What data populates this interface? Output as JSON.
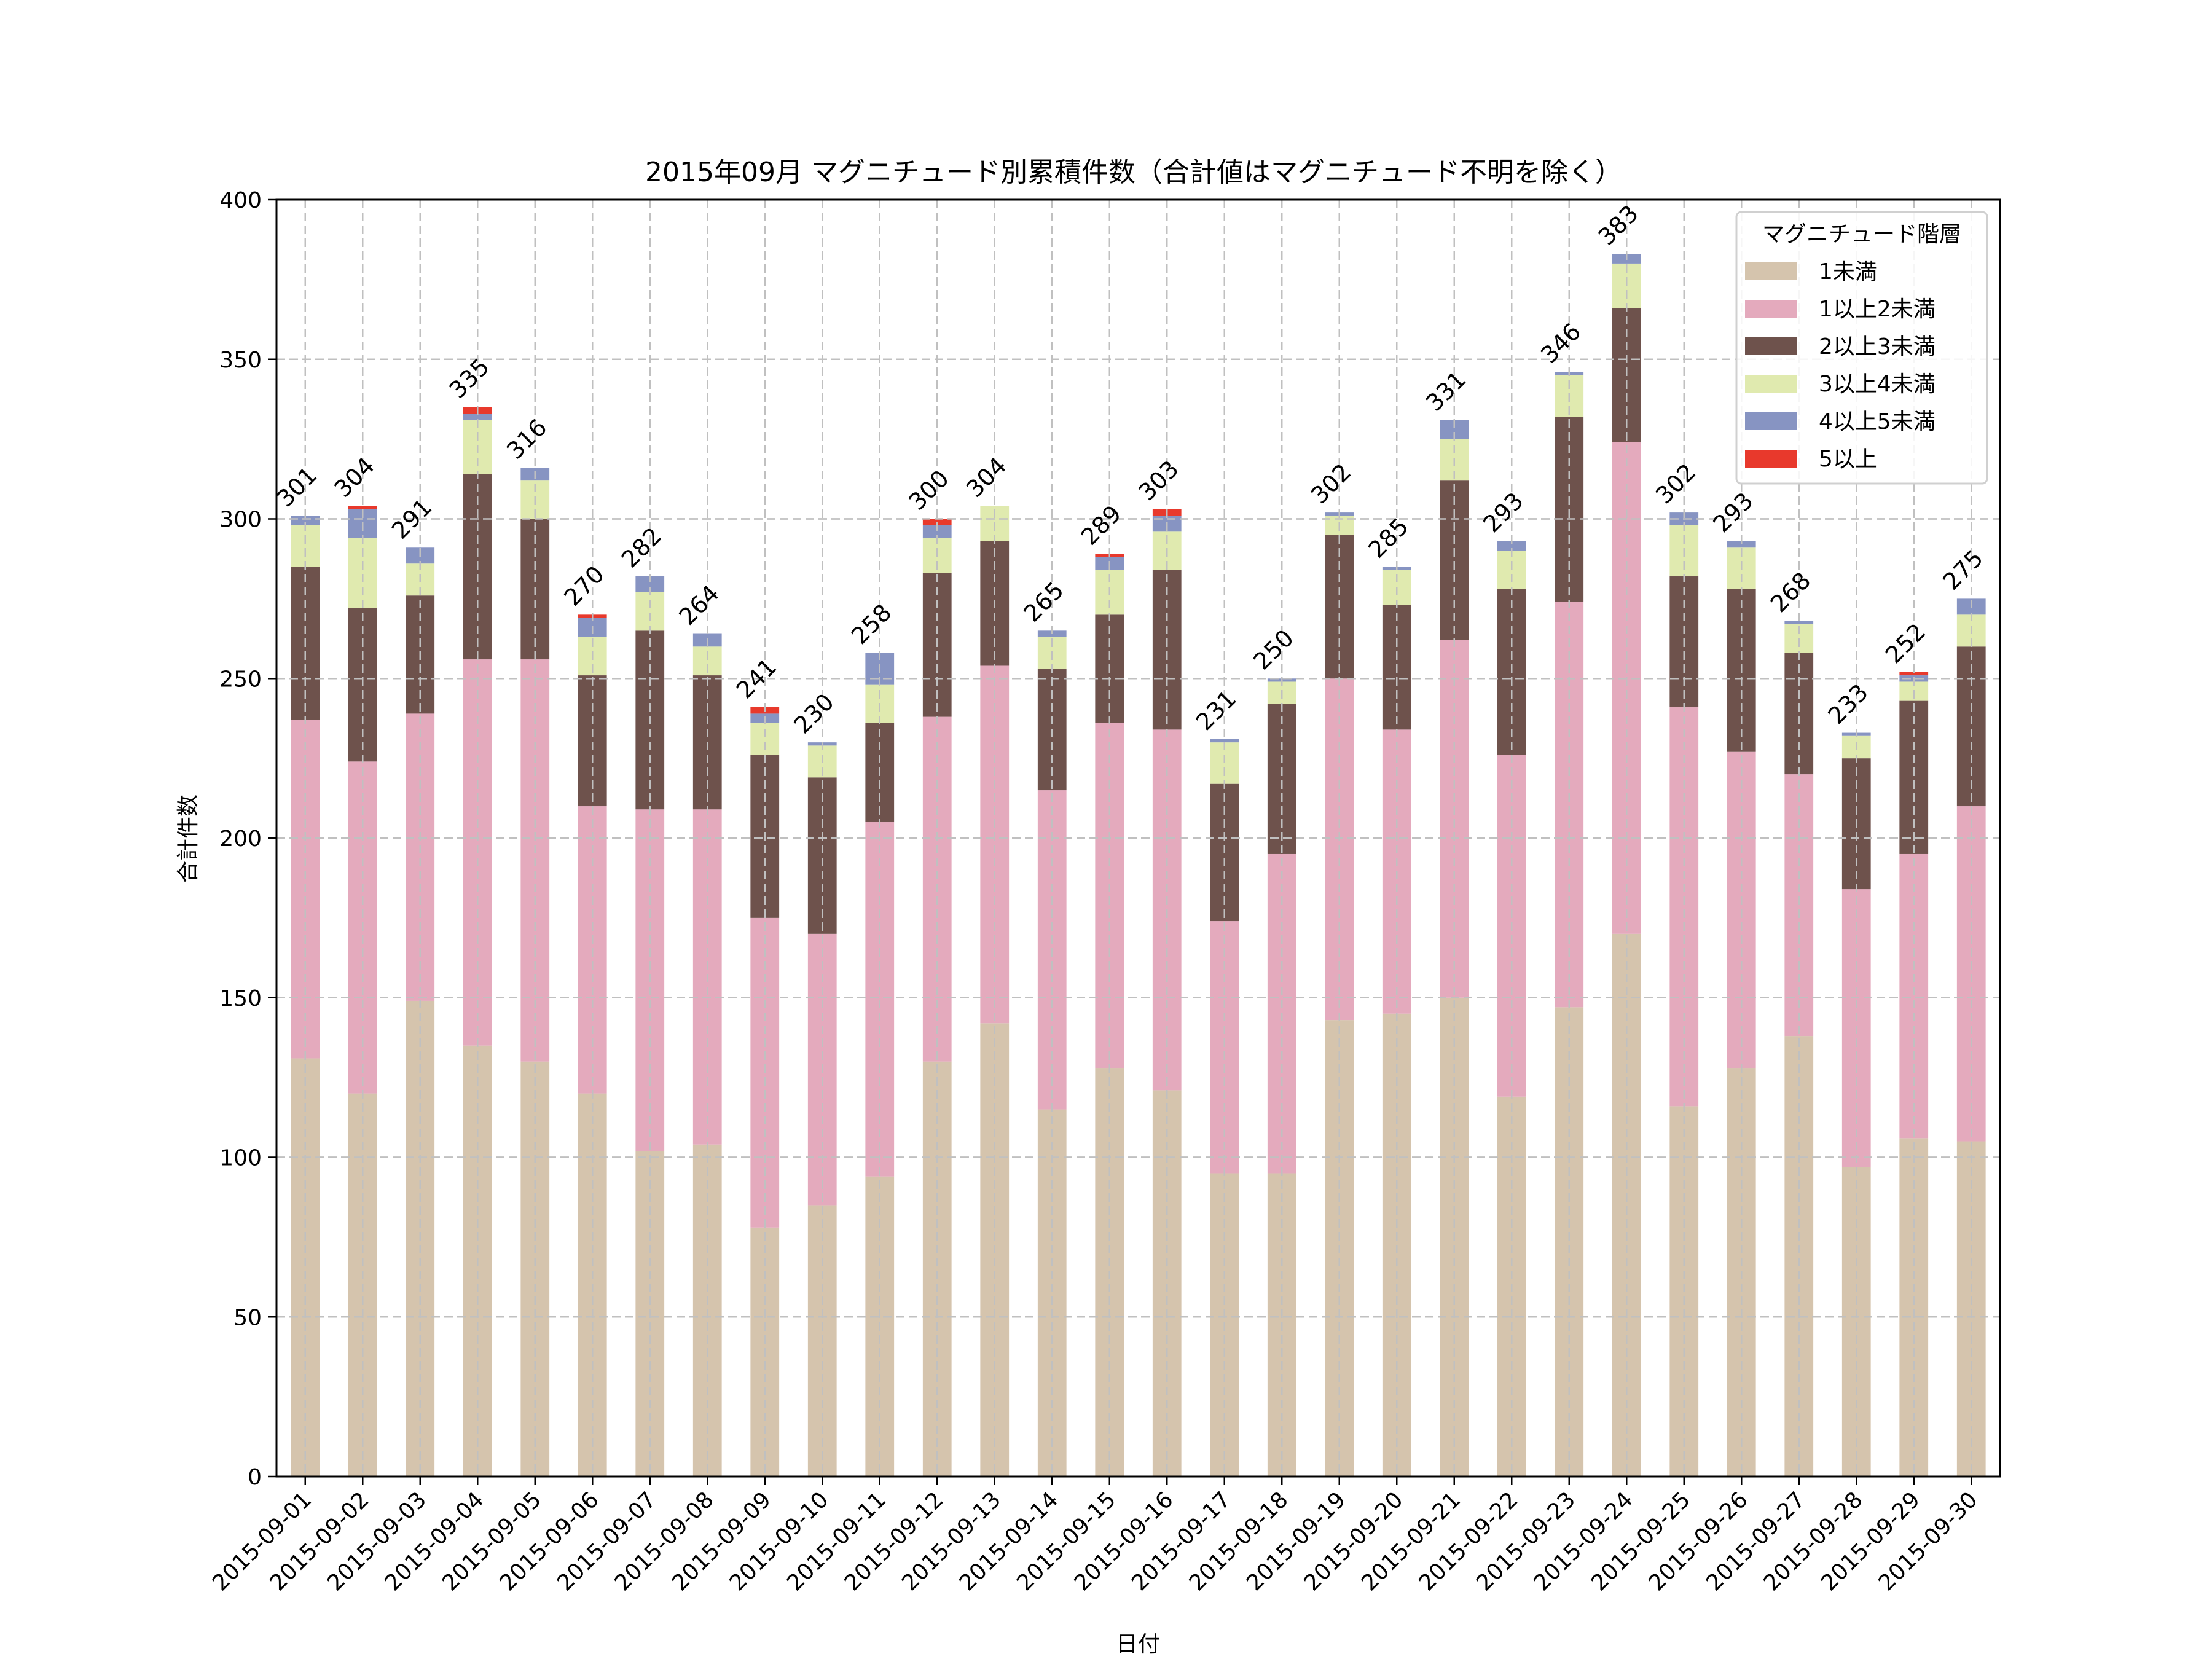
{
  "chart_data": {
    "type": "bar",
    "stacked": true,
    "title": "2015年09月 マグニチュード別累積件数（合計値はマグニチュード不明を除く）",
    "xlabel": "日付",
    "ylabel": "合計件数",
    "ylim": [
      0,
      400
    ],
    "yticks": [
      0,
      50,
      100,
      150,
      200,
      250,
      300,
      350,
      400
    ],
    "grid": true,
    "legend": {
      "title": "マグニチュード階層",
      "placement": "top-right"
    },
    "categories": [
      "2015-09-01",
      "2015-09-02",
      "2015-09-03",
      "2015-09-04",
      "2015-09-05",
      "2015-09-06",
      "2015-09-07",
      "2015-09-08",
      "2015-09-09",
      "2015-09-10",
      "2015-09-11",
      "2015-09-12",
      "2015-09-13",
      "2015-09-14",
      "2015-09-15",
      "2015-09-16",
      "2015-09-17",
      "2015-09-18",
      "2015-09-19",
      "2015-09-20",
      "2015-09-21",
      "2015-09-22",
      "2015-09-23",
      "2015-09-24",
      "2015-09-25",
      "2015-09-26",
      "2015-09-27",
      "2015-09-28",
      "2015-09-29",
      "2015-09-30"
    ],
    "series": [
      {
        "name": "1未満",
        "color": "#d5c4ad",
        "values": [
          131,
          120,
          149,
          135,
          130,
          120,
          102,
          104,
          78,
          85,
          94,
          130,
          142,
          115,
          128,
          121,
          95,
          95,
          143,
          145,
          150,
          119,
          147,
          170,
          116,
          128,
          138,
          97,
          106,
          105
        ]
      },
      {
        "name": "1以上2未満",
        "color": "#e4aabd",
        "values": [
          106,
          104,
          90,
          121,
          126,
          90,
          107,
          105,
          97,
          85,
          111,
          108,
          112,
          100,
          108,
          113,
          79,
          100,
          107,
          89,
          112,
          107,
          127,
          154,
          125,
          99,
          82,
          87,
          89,
          105
        ]
      },
      {
        "name": "2以上3未満",
        "color": "#6e524c",
        "values": [
          48,
          48,
          37,
          58,
          44,
          41,
          56,
          42,
          51,
          49,
          31,
          45,
          39,
          38,
          34,
          50,
          43,
          47,
          45,
          39,
          50,
          52,
          58,
          42,
          41,
          51,
          38,
          41,
          48,
          50
        ]
      },
      {
        "name": "3以上4未満",
        "color": "#e0eaaf",
        "values": [
          13,
          22,
          10,
          17,
          12,
          12,
          12,
          9,
          10,
          10,
          12,
          11,
          11,
          10,
          14,
          12,
          13,
          7,
          6,
          11,
          13,
          12,
          13,
          14,
          16,
          13,
          9,
          7,
          6,
          10
        ]
      },
      {
        "name": "4以上5未満",
        "color": "#8794c2",
        "values": [
          3,
          9,
          5,
          2,
          4,
          6,
          5,
          4,
          3,
          1,
          10,
          4,
          0,
          2,
          4,
          5,
          1,
          1,
          1,
          1,
          6,
          3,
          1,
          3,
          4,
          2,
          1,
          1,
          2,
          5
        ]
      },
      {
        "name": "5以上",
        "color": "#e8392c",
        "values": [
          0,
          1,
          0,
          2,
          0,
          1,
          0,
          0,
          2,
          0,
          0,
          2,
          0,
          0,
          1,
          2,
          0,
          0,
          0,
          0,
          0,
          0,
          0,
          0,
          0,
          0,
          0,
          0,
          1,
          0
        ]
      }
    ],
    "totals": [
      301,
      304,
      291,
      335,
      316,
      270,
      282,
      264,
      241,
      230,
      258,
      300,
      304,
      265,
      289,
      303,
      231,
      250,
      302,
      285,
      331,
      293,
      346,
      383,
      302,
      293,
      268,
      233,
      252,
      275
    ]
  }
}
